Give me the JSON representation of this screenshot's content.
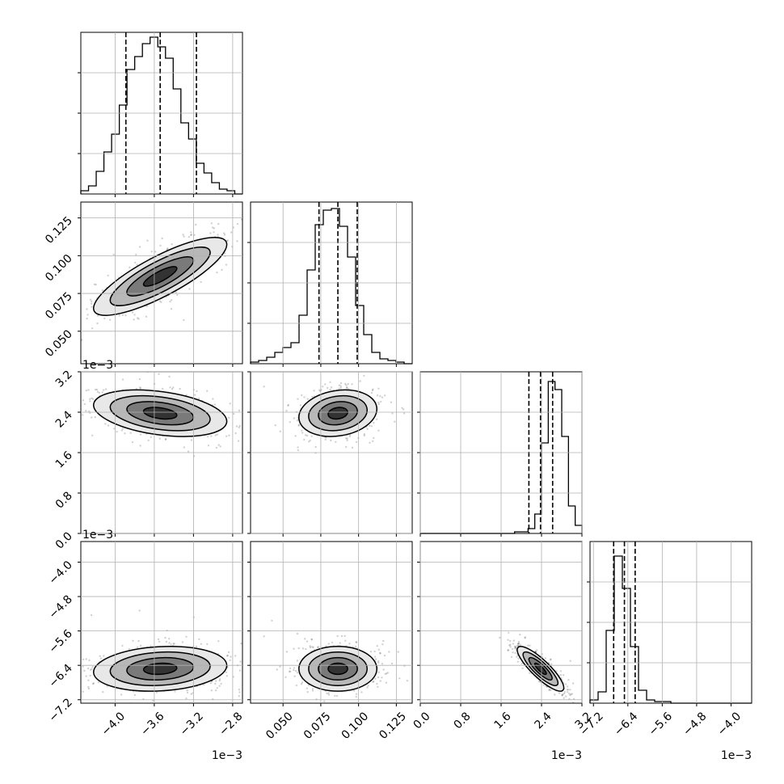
{
  "chart_data": {
    "type": "corner",
    "parameters": [
      {
        "range": [
          -0.00435,
          -0.0027
        ],
        "ticks": [
          -0.004,
          -0.0036,
          -0.0032,
          -0.0028
        ],
        "tick_labels": [
          "−4.0",
          "−3.6",
          "−3.2",
          "−2.8"
        ],
        "offset_label": "1e−3",
        "quantiles": [
          -0.00389,
          -0.00354,
          -0.00317
        ]
      },
      {
        "range": [
          0.0285,
          0.1355
        ],
        "ticks": [
          0.05,
          0.075,
          0.1,
          0.125
        ],
        "tick_labels": [
          "0.050",
          "0.075",
          "0.100",
          "0.125"
        ],
        "offset_label": "",
        "quantiles": [
          0.0738,
          0.0863,
          0.0991
        ]
      },
      {
        "range": [
          0.0,
          0.0032
        ],
        "ticks": [
          0.0,
          0.0008,
          0.0016,
          0.0024,
          0.0032
        ],
        "tick_labels": [
          "0.0",
          "0.8",
          "1.6",
          "2.4",
          "3.2"
        ],
        "offset_label": "1e−3",
        "quantiles": [
          0.00215,
          0.00238,
          0.00262
        ]
      },
      {
        "range": [
          -0.00728,
          -0.00352
        ],
        "ticks": [
          -0.0072,
          -0.0064,
          -0.0056,
          -0.0048,
          -0.004
        ],
        "tick_labels": [
          "−7.2",
          "−6.4",
          "−5.6",
          "−4.8",
          "−4.0"
        ],
        "offset_label": "1e−3",
        "quantiles": [
          -0.00673,
          -0.00648,
          -0.00623
        ]
      }
    ],
    "histograms": [
      [
        0.02,
        0.05,
        0.14,
        0.26,
        0.37,
        0.55,
        0.77,
        0.85,
        0.93,
        0.97,
        0.91,
        0.84,
        0.65,
        0.44,
        0.34,
        0.19,
        0.13,
        0.07,
        0.03,
        0.02,
        0
      ],
      [
        0.01,
        0.02,
        0.04,
        0.07,
        0.1,
        0.13,
        0.3,
        0.58,
        0.86,
        0.95,
        0.96,
        0.85,
        0.66,
        0.36,
        0.18,
        0.07,
        0.03,
        0.02,
        0.01,
        0
      ],
      [
        0,
        0,
        0,
        0,
        0,
        0,
        0,
        0,
        0,
        0,
        0,
        0,
        0,
        0,
        0.01,
        0.01,
        0.03,
        0.12,
        0.56,
        0.94,
        0.89,
        0.6,
        0.17,
        0.05
      ],
      [
        0.02,
        0.07,
        0.45,
        0.91,
        0.71,
        0.35,
        0.08,
        0.02,
        0.01,
        0.01,
        0,
        0,
        0,
        0,
        0,
        0,
        0,
        0,
        0,
        0
      ]
    ],
    "pairs": [
      {
        "row": 1,
        "col": 0,
        "mean": [
          -0.00354,
          0.0863
        ],
        "sigma": [
          0.00034,
          0.0129
        ],
        "rho": 0.82
      },
      {
        "row": 2,
        "col": 0,
        "mean": [
          -0.00354,
          0.00238
        ],
        "sigma": [
          0.00034,
          0.00023
        ],
        "rho": -0.35
      },
      {
        "row": 2,
        "col": 1,
        "mean": [
          0.0863,
          0.00238
        ],
        "sigma": [
          0.0129,
          0.00023
        ],
        "rho": 0.18
      },
      {
        "row": 3,
        "col": 0,
        "mean": [
          -0.00354,
          -0.00648
        ],
        "sigma": [
          0.00034,
          0.00026
        ],
        "rho": 0.15
      },
      {
        "row": 3,
        "col": 1,
        "mean": [
          0.0863,
          -0.00648
        ],
        "sigma": [
          0.0129,
          0.00026
        ],
        "rho": 0.0
      },
      {
        "row": 3,
        "col": 2,
        "mean": [
          0.00238,
          -0.00648
        ],
        "sigma": [
          0.00023,
          0.00026
        ],
        "rho": -0.85
      }
    ],
    "contour_levels_sigma": [
      0.5,
      1.0,
      1.5,
      2.0
    ],
    "grid": true
  }
}
